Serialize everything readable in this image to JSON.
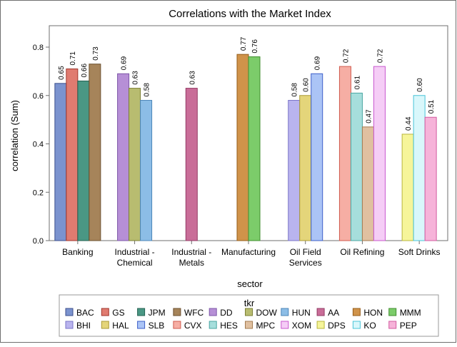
{
  "chart_data": {
    "type": "bar",
    "title": "Correlations with the Market Index",
    "xlabel": "sector",
    "ylabel": "correlation (Sum)",
    "ylim": [
      0,
      0.85
    ],
    "yticks": [
      "0.0",
      "0.2",
      "0.4",
      "0.6",
      "0.8"
    ],
    "grid": false,
    "legend_title": "tkr",
    "legend_position": "bottom",
    "categories": [
      {
        "lines": [
          "Banking"
        ],
        "series": [
          {
            "tkr": "BAC",
            "value": 0.65,
            "label": "0.65"
          },
          {
            "tkr": "GS",
            "value": 0.71,
            "label": "0.71"
          },
          {
            "tkr": "JPM",
            "value": 0.66,
            "label": "0.66"
          },
          {
            "tkr": "WFC",
            "value": 0.73,
            "label": "0.73"
          }
        ]
      },
      {
        "lines": [
          "Industrial -",
          "Chemical"
        ],
        "series": [
          {
            "tkr": "DD",
            "value": 0.69,
            "label": "0.69"
          },
          {
            "tkr": "DOW",
            "value": 0.63,
            "label": "0.63"
          },
          {
            "tkr": "HUN",
            "value": 0.58,
            "label": "0.58"
          }
        ]
      },
      {
        "lines": [
          "Industrial -",
          "Metals"
        ],
        "series": [
          {
            "tkr": "AA",
            "value": 0.63,
            "label": "0.63"
          }
        ]
      },
      {
        "lines": [
          "Manufacturing"
        ],
        "series": [
          {
            "tkr": "HON",
            "value": 0.77,
            "label": "0.77"
          },
          {
            "tkr": "MMM",
            "value": 0.76,
            "label": "0.76"
          }
        ]
      },
      {
        "lines": [
          "Oil Field",
          "Services"
        ],
        "series": [
          {
            "tkr": "BHI",
            "value": 0.58,
            "label": "0.58"
          },
          {
            "tkr": "HAL",
            "value": 0.6,
            "label": "0.60"
          },
          {
            "tkr": "SLB",
            "value": 0.69,
            "label": "0.69"
          }
        ]
      },
      {
        "lines": [
          "Oil Refining"
        ],
        "series": [
          {
            "tkr": "CVX",
            "value": 0.72,
            "label": "0.72"
          },
          {
            "tkr": "HES",
            "value": 0.61,
            "label": "0.61"
          },
          {
            "tkr": "MPC",
            "value": 0.47,
            "label": "0.47"
          },
          {
            "tkr": "XOM",
            "value": 0.72,
            "label": "0.72"
          }
        ]
      },
      {
        "lines": [
          "Soft Drinks"
        ],
        "series": [
          {
            "tkr": "DPS",
            "value": 0.44,
            "label": "0.44"
          },
          {
            "tkr": "KO",
            "value": 0.6,
            "label": "0.60"
          },
          {
            "tkr": "PEP",
            "value": 0.51,
            "label": "0.51"
          }
        ]
      }
    ],
    "legend": [
      {
        "tkr": "BAC",
        "fill": "#7b93cf",
        "stroke": "#3c4f8c"
      },
      {
        "tkr": "GS",
        "fill": "#e07b70",
        "stroke": "#a0362c"
      },
      {
        "tkr": "JPM",
        "fill": "#4a9784",
        "stroke": "#226050"
      },
      {
        "tkr": "WFC",
        "fill": "#a6845a",
        "stroke": "#6b4f2e"
      },
      {
        "tkr": "DD",
        "fill": "#b68fd6",
        "stroke": "#7e57a8"
      },
      {
        "tkr": "DOW",
        "fill": "#b8bc70",
        "stroke": "#7d8036"
      },
      {
        "tkr": "HUN",
        "fill": "#8cbde6",
        "stroke": "#4c86b8"
      },
      {
        "tkr": "AA",
        "fill": "#c96d98",
        "stroke": "#933a64"
      },
      {
        "tkr": "HON",
        "fill": "#d0934a",
        "stroke": "#955c1a"
      },
      {
        "tkr": "MMM",
        "fill": "#7ccc6a",
        "stroke": "#3f8e2e"
      },
      {
        "tkr": "BHI",
        "fill": "#b9b4ee",
        "stroke": "#7a74c8"
      },
      {
        "tkr": "HAL",
        "fill": "#e4d57a",
        "stroke": "#aa9a36"
      },
      {
        "tkr": "SLB",
        "fill": "#abc4f6",
        "stroke": "#3d5fc8"
      },
      {
        "tkr": "CVX",
        "fill": "#f6aea4",
        "stroke": "#d05a4e"
      },
      {
        "tkr": "HES",
        "fill": "#a6dedc",
        "stroke": "#4aa6a2"
      },
      {
        "tkr": "MPC",
        "fill": "#e0c0a0",
        "stroke": "#a37b50"
      },
      {
        "tkr": "XOM",
        "fill": "#f5cdf6",
        "stroke": "#c857ce"
      },
      {
        "tkr": "DPS",
        "fill": "#f6f59a",
        "stroke": "#b8b63c"
      },
      {
        "tkr": "KO",
        "fill": "#d9f7fb",
        "stroke": "#48c4d8"
      },
      {
        "tkr": "PEP",
        "fill": "#f6b3d9",
        "stroke": "#d35ba0"
      }
    ]
  }
}
